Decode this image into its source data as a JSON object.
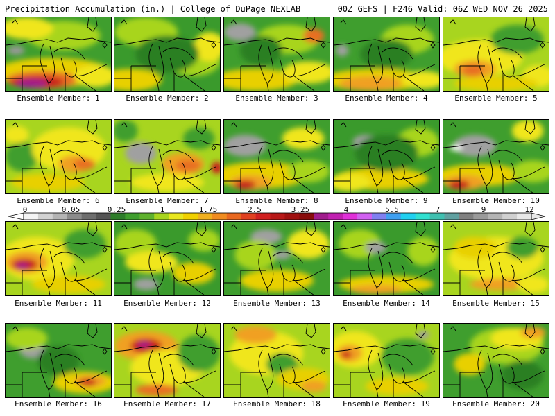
{
  "header": {
    "left_title": "Precipitation Accumulation (in.) | College of DuPage NEXLAB",
    "right_title": "00Z GEFS | F246 Valid: 06Z WED NOV 26 2025"
  },
  "members": [
    {
      "caption": "Ensemble Member: 1",
      "base": "#3f9e2e",
      "blobs": [
        [
          "#a8d51f",
          0.55,
          0.25,
          0.35,
          0.2
        ],
        [
          "#f0e61e",
          0.2,
          0.15,
          0.25,
          0.15
        ],
        [
          "#e8d000",
          0.45,
          0.75,
          0.55,
          0.2
        ],
        [
          "#e87020",
          0.35,
          0.85,
          0.35,
          0.12
        ],
        [
          "#c81e1e",
          0.3,
          0.88,
          0.25,
          0.08
        ],
        [
          "#a01c8c",
          0.25,
          0.9,
          0.15,
          0.06
        ],
        [
          "#f0e61e",
          0.85,
          0.8,
          0.2,
          0.15
        ],
        [
          "#9a9a9a",
          0.1,
          0.45,
          0.08,
          0.06
        ]
      ]
    },
    {
      "caption": "Ensemble Member: 2",
      "base": "#3a9a2c",
      "blobs": [
        [
          "#a8d51f",
          0.3,
          0.2,
          0.3,
          0.2
        ],
        [
          "#e8d000",
          0.15,
          0.85,
          0.3,
          0.15
        ],
        [
          "#a8d51f",
          0.75,
          0.6,
          0.25,
          0.2
        ],
        [
          "#f0e61e",
          0.9,
          0.4,
          0.15,
          0.2
        ],
        [
          "#2a7f24",
          0.5,
          0.5,
          0.3,
          0.25
        ]
      ]
    },
    {
      "caption": "Ensemble Member: 3",
      "base": "#3f9e2e",
      "blobs": [
        [
          "#a0a0a0",
          0.15,
          0.2,
          0.15,
          0.12
        ],
        [
          "#a8d51f",
          0.6,
          0.3,
          0.3,
          0.2
        ],
        [
          "#e8d000",
          0.3,
          0.85,
          0.4,
          0.15
        ],
        [
          "#f0e61e",
          0.8,
          0.75,
          0.25,
          0.15
        ],
        [
          "#e87020",
          0.85,
          0.25,
          0.1,
          0.1
        ],
        [
          "#2a7f24",
          0.35,
          0.45,
          0.2,
          0.2
        ]
      ]
    },
    {
      "caption": "Ensemble Member: 4",
      "base": "#3f9e2e",
      "blobs": [
        [
          "#a0a0a0",
          0.08,
          0.45,
          0.06,
          0.08
        ],
        [
          "#e8d000",
          0.4,
          0.85,
          0.5,
          0.15
        ],
        [
          "#f0a020",
          0.35,
          0.9,
          0.3,
          0.1
        ],
        [
          "#a8d51f",
          0.7,
          0.3,
          0.25,
          0.2
        ],
        [
          "#f0e61e",
          0.85,
          0.85,
          0.2,
          0.12
        ],
        [
          "#2a7f24",
          0.5,
          0.5,
          0.25,
          0.2
        ]
      ]
    },
    {
      "caption": "Ensemble Member: 5",
      "base": "#a8d51f",
      "blobs": [
        [
          "#f0e61e",
          0.35,
          0.55,
          0.4,
          0.25
        ],
        [
          "#f0a020",
          0.3,
          0.7,
          0.2,
          0.12
        ],
        [
          "#e87020",
          0.28,
          0.72,
          0.1,
          0.08
        ],
        [
          "#3f9e2e",
          0.7,
          0.3,
          0.25,
          0.2
        ],
        [
          "#f0e61e",
          0.9,
          0.8,
          0.15,
          0.15
        ],
        [
          "#e8d000",
          0.5,
          0.9,
          0.4,
          0.1
        ]
      ]
    },
    {
      "caption": "Ensemble Member: 6",
      "base": "#a8d51f",
      "blobs": [
        [
          "#3f9e2e",
          0.15,
          0.5,
          0.15,
          0.2
        ],
        [
          "#f0e61e",
          0.6,
          0.4,
          0.35,
          0.3
        ],
        [
          "#f0a020",
          0.65,
          0.6,
          0.15,
          0.12
        ],
        [
          "#e87020",
          0.75,
          0.6,
          0.1,
          0.08
        ],
        [
          "#e8d000",
          0.4,
          0.85,
          0.35,
          0.12
        ],
        [
          "#f0e61e",
          0.1,
          0.2,
          0.12,
          0.12
        ]
      ]
    },
    {
      "caption": "Ensemble Member: 7",
      "base": "#a8d51f",
      "blobs": [
        [
          "#a0a0a0",
          0.25,
          0.45,
          0.15,
          0.15
        ],
        [
          "#3f9e2e",
          0.1,
          0.15,
          0.12,
          0.15
        ],
        [
          "#f0a020",
          0.65,
          0.6,
          0.2,
          0.15
        ],
        [
          "#e87020",
          0.7,
          0.62,
          0.12,
          0.08
        ],
        [
          "#c81e1e",
          0.97,
          0.65,
          0.05,
          0.08
        ],
        [
          "#f0e61e",
          0.5,
          0.85,
          0.35,
          0.12
        ],
        [
          "#3f9e2e",
          0.8,
          0.25,
          0.15,
          0.15
        ]
      ]
    },
    {
      "caption": "Ensemble Member: 8",
      "base": "#3f9e2e",
      "blobs": [
        [
          "#a0a0a0",
          0.2,
          0.35,
          0.2,
          0.15
        ],
        [
          "#e8d000",
          0.35,
          0.75,
          0.45,
          0.18
        ],
        [
          "#f0a020",
          0.25,
          0.85,
          0.2,
          0.1
        ],
        [
          "#c81e1e",
          0.2,
          0.88,
          0.1,
          0.06
        ],
        [
          "#f0e61e",
          0.75,
          0.25,
          0.2,
          0.15
        ],
        [
          "#a8d51f",
          0.8,
          0.7,
          0.2,
          0.15
        ]
      ]
    },
    {
      "caption": "Ensemble Member: 9",
      "base": "#3a9a2c",
      "blobs": [
        [
          "#a0a0a0",
          0.3,
          0.3,
          0.12,
          0.1
        ],
        [
          "#a8d51f",
          0.8,
          0.3,
          0.2,
          0.2
        ],
        [
          "#e8d000",
          0.45,
          0.8,
          0.45,
          0.15
        ],
        [
          "#2a7f24",
          0.5,
          0.45,
          0.3,
          0.25
        ],
        [
          "#f0e61e",
          0.15,
          0.85,
          0.2,
          0.12
        ]
      ]
    },
    {
      "caption": "Ensemble Member: 10",
      "base": "#3f9e2e",
      "blobs": [
        [
          "#a0a0a0",
          0.3,
          0.35,
          0.2,
          0.15
        ],
        [
          "#ffffff",
          0.12,
          0.38,
          0.06,
          0.04
        ],
        [
          "#e8d000",
          0.35,
          0.75,
          0.4,
          0.15
        ],
        [
          "#f0a020",
          0.2,
          0.85,
          0.2,
          0.1
        ],
        [
          "#c81e1e",
          0.15,
          0.88,
          0.1,
          0.06
        ],
        [
          "#f0e61e",
          0.8,
          0.15,
          0.15,
          0.15
        ],
        [
          "#a8d51f",
          0.85,
          0.7,
          0.2,
          0.15
        ]
      ]
    },
    {
      "caption": "Ensemble Member: 11",
      "base": "#a8d51f",
      "blobs": [
        [
          "#f0e61e",
          0.3,
          0.5,
          0.35,
          0.3
        ],
        [
          "#f0a020",
          0.2,
          0.55,
          0.2,
          0.15
        ],
        [
          "#c81e1e",
          0.18,
          0.58,
          0.12,
          0.08
        ],
        [
          "#a01c8c",
          0.16,
          0.6,
          0.06,
          0.04
        ],
        [
          "#3f9e2e",
          0.75,
          0.3,
          0.2,
          0.2
        ],
        [
          "#e8d000",
          0.6,
          0.85,
          0.35,
          0.12
        ]
      ]
    },
    {
      "caption": "Ensemble Member: 12",
      "base": "#3a9a2c",
      "blobs": [
        [
          "#a8d51f",
          0.2,
          0.3,
          0.2,
          0.2
        ],
        [
          "#f0e61e",
          0.35,
          0.55,
          0.25,
          0.15
        ],
        [
          "#a0a0a0",
          0.3,
          0.85,
          0.12,
          0.08
        ],
        [
          "#e8d000",
          0.75,
          0.7,
          0.2,
          0.15
        ],
        [
          "#a8d51f",
          0.85,
          0.25,
          0.15,
          0.15
        ]
      ]
    },
    {
      "caption": "Ensemble Member: 13",
      "base": "#3f9e2e",
      "blobs": [
        [
          "#a0a0a0",
          0.4,
          0.2,
          0.15,
          0.1
        ],
        [
          "#f0e61e",
          0.8,
          0.3,
          0.2,
          0.2
        ],
        [
          "#a8d51f",
          0.3,
          0.45,
          0.2,
          0.2
        ],
        [
          "#e8d000",
          0.5,
          0.8,
          0.35,
          0.15
        ],
        [
          "#a0a0a0",
          0.55,
          0.45,
          0.08,
          0.06
        ]
      ]
    },
    {
      "caption": "Ensemble Member: 14",
      "base": "#3a9a2c",
      "blobs": [
        [
          "#a8d51f",
          0.25,
          0.3,
          0.2,
          0.2
        ],
        [
          "#a0a0a0",
          0.4,
          0.35,
          0.1,
          0.08
        ],
        [
          "#e8d000",
          0.5,
          0.85,
          0.45,
          0.12
        ],
        [
          "#f0a020",
          0.4,
          0.92,
          0.25,
          0.06
        ],
        [
          "#a8d51f",
          0.85,
          0.4,
          0.15,
          0.2
        ]
      ]
    },
    {
      "caption": "Ensemble Member: 15",
      "base": "#a8d51f",
      "blobs": [
        [
          "#f0e61e",
          0.5,
          0.5,
          0.45,
          0.3
        ],
        [
          "#e8d000",
          0.3,
          0.35,
          0.2,
          0.15
        ],
        [
          "#3f9e2e",
          0.75,
          0.35,
          0.15,
          0.15
        ],
        [
          "#f0a020",
          0.55,
          0.85,
          0.3,
          0.08
        ],
        [
          "#f0e61e",
          0.85,
          0.85,
          0.15,
          0.12
        ]
      ]
    },
    {
      "caption": "Ensemble Member: 16",
      "base": "#3f9e2e",
      "blobs": [
        [
          "#a0a0a0",
          0.25,
          0.35,
          0.12,
          0.12
        ],
        [
          "#a8d51f",
          0.2,
          0.2,
          0.2,
          0.15
        ],
        [
          "#e8d000",
          0.75,
          0.8,
          0.3,
          0.15
        ],
        [
          "#f0a020",
          0.8,
          0.78,
          0.15,
          0.08
        ],
        [
          "#c81e1e",
          0.78,
          0.8,
          0.08,
          0.05
        ],
        [
          "#2a7f24",
          0.5,
          0.5,
          0.2,
          0.2
        ]
      ]
    },
    {
      "caption": "Ensemble Member: 17",
      "base": "#a8d51f",
      "blobs": [
        [
          "#f0a020",
          0.3,
          0.3,
          0.3,
          0.2
        ],
        [
          "#c81e1e",
          0.3,
          0.3,
          0.15,
          0.1
        ],
        [
          "#a01c8c",
          0.28,
          0.28,
          0.06,
          0.04
        ],
        [
          "#f0e61e",
          0.5,
          0.6,
          0.35,
          0.25
        ],
        [
          "#3f9e2e",
          0.8,
          0.4,
          0.2,
          0.25
        ],
        [
          "#e87020",
          0.4,
          0.9,
          0.2,
          0.08
        ]
      ]
    },
    {
      "caption": "Ensemble Member: 18",
      "base": "#a8d51f",
      "blobs": [
        [
          "#f0e61e",
          0.4,
          0.4,
          0.35,
          0.3
        ],
        [
          "#f0a020",
          0.3,
          0.15,
          0.2,
          0.12
        ],
        [
          "#3f9e2e",
          0.55,
          0.55,
          0.15,
          0.15
        ],
        [
          "#e8d000",
          0.75,
          0.75,
          0.25,
          0.15
        ],
        [
          "#f0a020",
          0.85,
          0.85,
          0.12,
          0.08
        ]
      ]
    },
    {
      "caption": "Ensemble Member: 19",
      "base": "#a8d51f",
      "blobs": [
        [
          "#f0e61e",
          0.2,
          0.35,
          0.25,
          0.25
        ],
        [
          "#f0a020",
          0.15,
          0.4,
          0.12,
          0.12
        ],
        [
          "#c81e1e",
          0.12,
          0.42,
          0.05,
          0.05
        ],
        [
          "#3f9e2e",
          0.7,
          0.45,
          0.25,
          0.25
        ],
        [
          "#e8d000",
          0.6,
          0.85,
          0.3,
          0.12
        ],
        [
          "#a0a0a0",
          0.85,
          0.15,
          0.06,
          0.05
        ]
      ]
    },
    {
      "caption": "Ensemble Member: 20",
      "base": "#3f9e2e",
      "blobs": [
        [
          "#a8d51f",
          0.6,
          0.3,
          0.35,
          0.25
        ],
        [
          "#f0e61e",
          0.7,
          0.2,
          0.25,
          0.15
        ],
        [
          "#f0a020",
          0.85,
          0.12,
          0.12,
          0.08
        ],
        [
          "#e8d000",
          0.25,
          0.55,
          0.15,
          0.15
        ],
        [
          "#2a7f24",
          0.75,
          0.7,
          0.2,
          0.2
        ]
      ]
    }
  ],
  "scale": {
    "labels": [
      "0",
      "0.05",
      "0.25",
      "1",
      "1.75",
      "2.5",
      "3.25",
      "4",
      "5.5",
      "7",
      "9",
      "12"
    ],
    "colors": [
      "#f4f4f4",
      "#d2d2d2",
      "#b4b4b4",
      "#8c8c8c",
      "#6e6e6e",
      "#555555",
      "#2e7d2a",
      "#3f9e2e",
      "#5fb22e",
      "#a8d51f",
      "#e8e61e",
      "#f0d000",
      "#f0b020",
      "#f08c20",
      "#e86820",
      "#e04020",
      "#d02020",
      "#b81818",
      "#a01010",
      "#880c0c",
      "#a01c8c",
      "#c020b0",
      "#e030d8",
      "#d060f0",
      "#8080f0",
      "#40a0f0",
      "#20d0f0",
      "#30e0d0",
      "#40c0b0",
      "#60a0a0",
      "#808080",
      "#9a9a9a",
      "#b4b4b4",
      "#d0d0d0",
      "#e8e8e8"
    ]
  }
}
